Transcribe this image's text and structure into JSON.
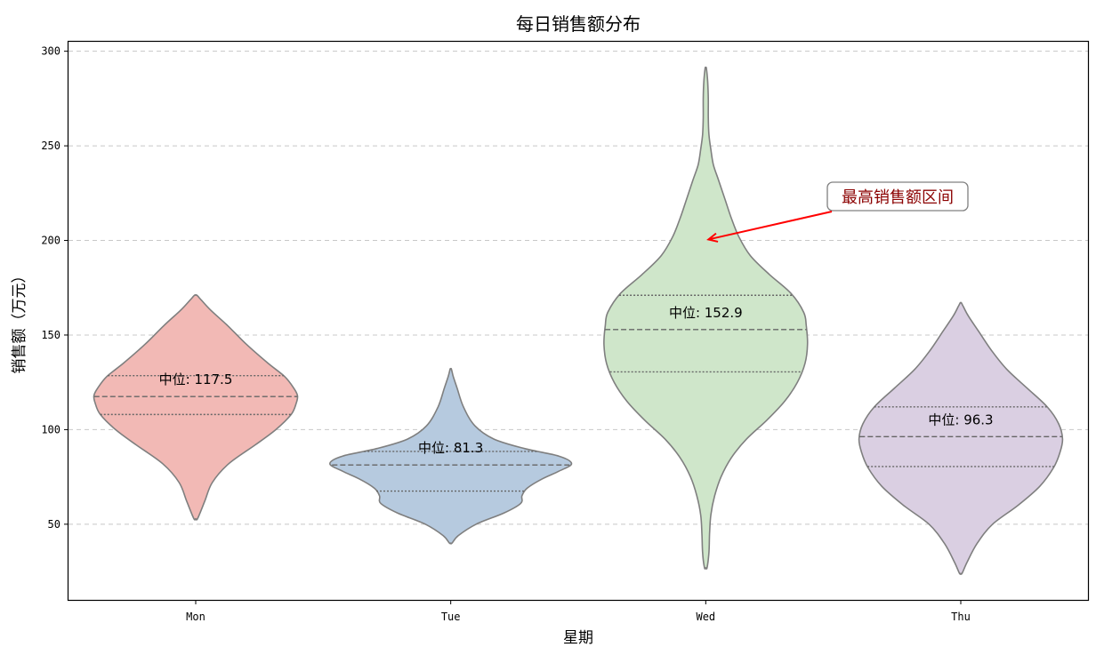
{
  "chart_data": {
    "type": "violin",
    "title": "每日销售额分布",
    "xlabel": "星期",
    "ylabel": "销售额（万元）",
    "categories": [
      "Mon",
      "Tue",
      "Wed",
      "Thu"
    ],
    "ylim": [
      10,
      305
    ],
    "yticks": [
      50,
      100,
      150,
      200,
      250,
      300
    ],
    "grid": true,
    "colors": [
      "#f2b9b5",
      "#b6cadf",
      "#cfe6ca",
      "#dacfe2"
    ],
    "outline_color": "#7f7f7f",
    "median_label_prefix": "中位: ",
    "series": [
      {
        "category": "Mon",
        "min": 53,
        "max": 171,
        "q1": 108,
        "median": 117.5,
        "q3": 128.5,
        "median_label": "中位: 117.5",
        "profile": [
          [
            53,
            0.015
          ],
          [
            62,
            0.07
          ],
          [
            72,
            0.13
          ],
          [
            82,
            0.26
          ],
          [
            92,
            0.47
          ],
          [
            100,
            0.63
          ],
          [
            108,
            0.75
          ],
          [
            114,
            0.79
          ],
          [
            118,
            0.8
          ],
          [
            122,
            0.77
          ],
          [
            128,
            0.7
          ],
          [
            135,
            0.57
          ],
          [
            145,
            0.4
          ],
          [
            155,
            0.25
          ],
          [
            163,
            0.12
          ],
          [
            168,
            0.05
          ],
          [
            171,
            0.01
          ]
        ]
      },
      {
        "category": "Tue",
        "min": 40,
        "max": 132,
        "q1": 67.5,
        "median": 81.3,
        "q3": 88.5,
        "median_label": "中位: 81.3",
        "profile": [
          [
            40,
            0.01
          ],
          [
            44,
            0.06
          ],
          [
            50,
            0.2
          ],
          [
            56,
            0.42
          ],
          [
            61,
            0.55
          ],
          [
            65,
            0.56
          ],
          [
            69,
            0.6
          ],
          [
            74,
            0.72
          ],
          [
            78,
            0.85
          ],
          [
            82,
            0.95
          ],
          [
            86,
            0.85
          ],
          [
            90,
            0.58
          ],
          [
            95,
            0.34
          ],
          [
            102,
            0.19
          ],
          [
            112,
            0.1
          ],
          [
            122,
            0.05
          ],
          [
            128,
            0.02
          ],
          [
            132,
            0.005
          ]
        ]
      },
      {
        "category": "Wed",
        "min": 27,
        "max": 291,
        "q1": 130.5,
        "median": 152.9,
        "q3": 171,
        "median_label": "中位: 152.9",
        "profile": [
          [
            27,
            0.01
          ],
          [
            35,
            0.025
          ],
          [
            45,
            0.03
          ],
          [
            55,
            0.04
          ],
          [
            65,
            0.07
          ],
          [
            75,
            0.12
          ],
          [
            85,
            0.2
          ],
          [
            95,
            0.32
          ],
          [
            105,
            0.48
          ],
          [
            115,
            0.62
          ],
          [
            125,
            0.72
          ],
          [
            135,
            0.78
          ],
          [
            145,
            0.8
          ],
          [
            155,
            0.79
          ],
          [
            162,
            0.77
          ],
          [
            172,
            0.67
          ],
          [
            182,
            0.5
          ],
          [
            192,
            0.35
          ],
          [
            202,
            0.26
          ],
          [
            212,
            0.2
          ],
          [
            222,
            0.15
          ],
          [
            232,
            0.1
          ],
          [
            240,
            0.06
          ],
          [
            248,
            0.04
          ],
          [
            256,
            0.025
          ],
          [
            265,
            0.02
          ],
          [
            275,
            0.02
          ],
          [
            284,
            0.015
          ],
          [
            291,
            0.005
          ]
        ]
      },
      {
        "category": "Thu",
        "min": 24,
        "max": 167,
        "q1": 80.5,
        "median": 96.3,
        "q3": 112,
        "median_label": "中位: 96.3",
        "profile": [
          [
            24,
            0.01
          ],
          [
            30,
            0.05
          ],
          [
            40,
            0.13
          ],
          [
            50,
            0.25
          ],
          [
            60,
            0.45
          ],
          [
            70,
            0.62
          ],
          [
            80,
            0.73
          ],
          [
            88,
            0.78
          ],
          [
            95,
            0.8
          ],
          [
            103,
            0.77
          ],
          [
            112,
            0.68
          ],
          [
            122,
            0.52
          ],
          [
            132,
            0.36
          ],
          [
            142,
            0.24
          ],
          [
            152,
            0.14
          ],
          [
            160,
            0.06
          ],
          [
            165,
            0.02
          ],
          [
            167,
            0.005
          ]
        ]
      }
    ],
    "annotation": {
      "text": "最高销售额区间",
      "target": {
        "category": "Wed",
        "y": 200.5
      },
      "text_color": "#8b0000",
      "arrow_color": "#ff0000"
    }
  }
}
